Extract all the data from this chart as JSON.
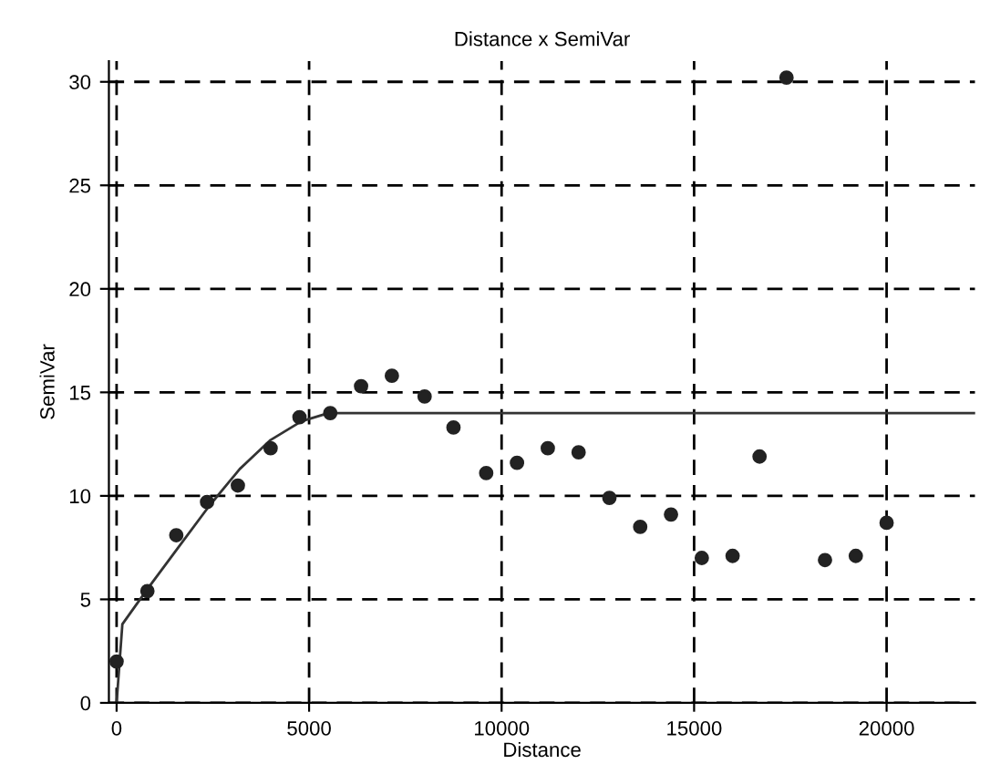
{
  "chart_data": {
    "type": "scatter",
    "title": "Distance x SemiVar",
    "xlabel": "Distance",
    "ylabel": "SemiVar",
    "xlim": [
      -200,
      22300
    ],
    "ylim": [
      0,
      31
    ],
    "xticks": [
      0,
      5000,
      10000,
      15000,
      20000
    ],
    "yticks": [
      0,
      5,
      10,
      15,
      20,
      25,
      30
    ],
    "grid": true,
    "marker": "circle",
    "series": [
      {
        "color": "#222222",
        "x": [
          0,
          800,
          1550,
          2350,
          3150,
          4000,
          4750,
          5550,
          6350,
          7150,
          8000,
          8750,
          9600,
          10400,
          11200,
          12000,
          12800,
          13600,
          14400,
          15200,
          16000,
          16700,
          17400,
          18400,
          19200,
          20000
        ],
        "values": [
          2.0,
          5.4,
          8.1,
          9.7,
          10.5,
          12.3,
          13.8,
          14.0,
          15.3,
          15.8,
          14.8,
          13.3,
          11.1,
          11.6,
          12.3,
          12.1,
          9.9,
          8.5,
          9.1,
          7.0,
          7.1,
          11.9,
          30.2,
          6.9,
          7.1,
          8.7
        ]
      },
      {
        "type": "line",
        "color": "#333333",
        "line_style": "solid",
        "marker": "none",
        "x": [
          0,
          150,
          800,
          1600,
          2400,
          3200,
          4000,
          4800,
          5500,
          22300
        ],
        "values": [
          0,
          3.8,
          5.5,
          7.5,
          9.5,
          11.3,
          12.7,
          13.6,
          14.0,
          14.0
        ]
      }
    ]
  }
}
